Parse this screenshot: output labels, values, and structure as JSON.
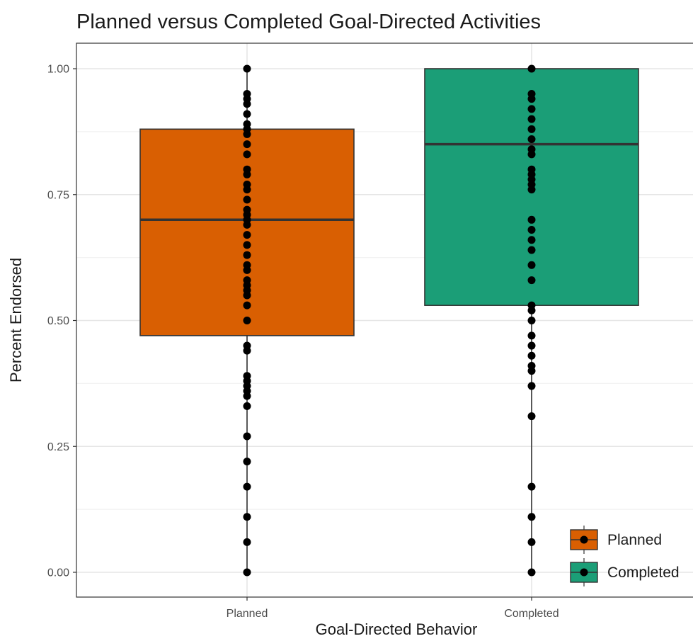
{
  "chart_data": {
    "type": "boxplot",
    "title": "Planned versus Completed Goal-Directed Activities",
    "xlabel": "Goal-Directed Behavior",
    "ylabel": "Percent Endorsed",
    "categories": [
      "Planned",
      "Completed"
    ],
    "ylim": [
      0,
      1
    ],
    "yticks": [
      0,
      0.25,
      0.5,
      0.75,
      1
    ],
    "ytick_labels": [
      "0.00",
      "0.25",
      "0.50",
      "0.75",
      "1.00"
    ],
    "grid": true,
    "legend": {
      "placement": "bottom-right",
      "entries": [
        "Planned",
        "Completed"
      ]
    },
    "series": [
      {
        "name": "Planned",
        "color": "#d95f02",
        "box": {
          "min": 0.0,
          "q1": 0.47,
          "median": 0.7,
          "q3": 0.88,
          "max": 1.0
        },
        "points": [
          1.0,
          0.95,
          0.94,
          0.93,
          0.91,
          0.89,
          0.88,
          0.87,
          0.85,
          0.83,
          0.8,
          0.79,
          0.77,
          0.76,
          0.74,
          0.72,
          0.71,
          0.7,
          0.69,
          0.67,
          0.65,
          0.63,
          0.61,
          0.6,
          0.58,
          0.57,
          0.56,
          0.55,
          0.53,
          0.5,
          0.45,
          0.44,
          0.39,
          0.38,
          0.37,
          0.36,
          0.35,
          0.33,
          0.27,
          0.22,
          0.17,
          0.11,
          0.06,
          0.0
        ]
      },
      {
        "name": "Completed",
        "color": "#1b9e77",
        "box": {
          "min": 0.0,
          "q1": 0.53,
          "median": 0.85,
          "q3": 1.0,
          "max": 1.0
        },
        "points": [
          1.0,
          0.95,
          0.94,
          0.92,
          0.9,
          0.88,
          0.86,
          0.84,
          0.83,
          0.8,
          0.79,
          0.78,
          0.77,
          0.76,
          0.7,
          0.68,
          0.66,
          0.64,
          0.61,
          0.58,
          0.53,
          0.52,
          0.5,
          0.47,
          0.45,
          0.43,
          0.41,
          0.4,
          0.37,
          0.31,
          0.17,
          0.11,
          0.06,
          0.0
        ]
      }
    ]
  }
}
